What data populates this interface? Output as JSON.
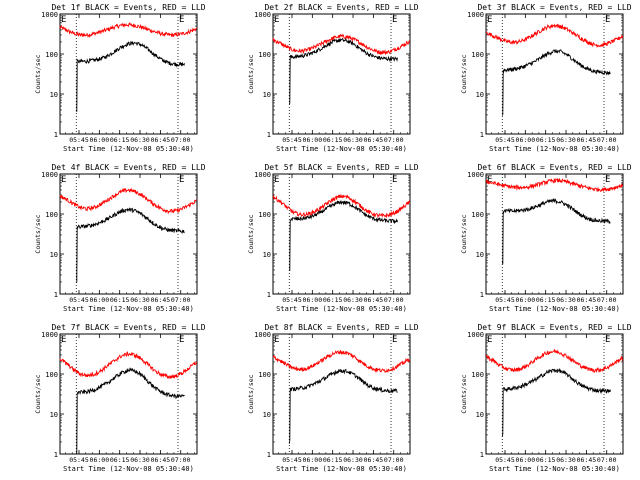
{
  "figure": {
    "panel_titles": [
      "Det 1f BLACK = Events, RED = LLD",
      "Det 2f BLACK = Events, RED = LLD",
      "Det 3f BLACK = Events, RED = LLD",
      "Det 4f BLACK = Events, RED = LLD",
      "Det 5f BLACK = Events, RED = LLD",
      "Det 6f BLACK = Events, RED = LLD",
      "Det 7f BLACK = Events, RED = LLD",
      "Det 8f BLACK = Events, RED = LLD",
      "Det 9f BLACK = Events, RED = LLD"
    ],
    "colors": {
      "events": "#000000",
      "lld": "#ff0000",
      "axes": "#000000",
      "background": "#ffffff"
    }
  },
  "chart_data": [
    {
      "type": "line",
      "title": "Det 1f BLACK = Events, RED = LLD",
      "xlabel": "Start Time (12-Nov-08 05:30:40)",
      "ylabel": "Counts/sec",
      "yscale": "log",
      "ylim": [
        1,
        1000
      ],
      "xlim": [
        "05:31",
        "07:12"
      ],
      "xticks": [
        "05:45",
        "06:00",
        "06:15",
        "06:30",
        "06:45",
        "07:00"
      ],
      "yticks": [
        "1",
        "10",
        "100",
        "1000"
      ],
      "markers": [
        {
          "label": "E",
          "x": "05:31"
        },
        {
          "label": "E",
          "x": "06:58"
        }
      ],
      "dotted_vlines": [
        "05:43",
        "06:58"
      ],
      "x": [
        "05:31",
        "05:36",
        "05:41",
        "05:46",
        "05:51",
        "05:56",
        "06:01",
        "06:06",
        "06:11",
        "06:16",
        "06:21",
        "06:26",
        "06:31",
        "06:36",
        "06:41",
        "06:46",
        "06:51",
        "06:56",
        "07:01",
        "07:06",
        "07:11"
      ],
      "series": [
        {
          "name": "LLD",
          "color": "#ff0000",
          "values": [
            470,
            390,
            330,
            300,
            300,
            320,
            360,
            410,
            470,
            520,
            540,
            520,
            470,
            410,
            360,
            320,
            300,
            300,
            320,
            360,
            420
          ]
        },
        {
          "name": "Events",
          "color": "#000000",
          "x_start": "05:43",
          "x_end": "07:03",
          "values": [
            null,
            null,
            4,
            65,
            66,
            70,
            76,
            90,
            115,
            150,
            180,
            190,
            170,
            130,
            95,
            72,
            60,
            56,
            55,
            null,
            null
          ]
        }
      ]
    },
    {
      "type": "line",
      "title": "Det 2f BLACK = Events, RED = LLD",
      "xlabel": "Start Time (12-Nov-08 05:30:40)",
      "ylabel": "Counts/sec",
      "yscale": "log",
      "ylim": [
        1,
        1000
      ],
      "xlim": [
        "05:31",
        "07:12"
      ],
      "xticks": [
        "05:45",
        "06:00",
        "06:15",
        "06:30",
        "06:45",
        "07:00"
      ],
      "yticks": [
        "1",
        "10",
        "100",
        "1000"
      ],
      "markers": [
        {
          "label": "E",
          "x": "05:31"
        },
        {
          "label": "E",
          "x": "06:58"
        }
      ],
      "dotted_vlines": [
        "05:43",
        "06:58"
      ],
      "x": [
        "05:31",
        "05:36",
        "05:41",
        "05:46",
        "05:51",
        "05:56",
        "06:01",
        "06:06",
        "06:11",
        "06:16",
        "06:21",
        "06:26",
        "06:31",
        "06:36",
        "06:41",
        "06:46",
        "06:51",
        "06:56",
        "07:01",
        "07:06",
        "07:11"
      ],
      "series": [
        {
          "name": "LLD",
          "color": "#ff0000",
          "values": [
            230,
            190,
            150,
            125,
            118,
            125,
            145,
            175,
            215,
            255,
            280,
            265,
            230,
            185,
            145,
            120,
            110,
            112,
            130,
            160,
            200
          ]
        },
        {
          "name": "Events",
          "color": "#000000",
          "x_start": "05:43",
          "x_end": "07:03",
          "values": [
            null,
            null,
            6,
            85,
            88,
            95,
            110,
            135,
            170,
            205,
            225,
            210,
            175,
            130,
            100,
            85,
            78,
            76,
            75,
            null,
            null
          ]
        }
      ]
    },
    {
      "type": "line",
      "title": "Det 3f BLACK = Events, RED = LLD",
      "xlabel": "Start Time (12-Nov-08 05:30:40)",
      "ylabel": "Counts/sec",
      "yscale": "log",
      "ylim": [
        1,
        1000
      ],
      "xlim": [
        "05:31",
        "07:12"
      ],
      "xticks": [
        "05:45",
        "06:00",
        "06:15",
        "06:30",
        "06:45",
        "07:00"
      ],
      "yticks": [
        "1",
        "10",
        "100",
        "1000"
      ],
      "markers": [
        {
          "label": "E",
          "x": "05:31"
        },
        {
          "label": "E",
          "x": "06:58"
        }
      ],
      "dotted_vlines": [
        "05:43",
        "06:58"
      ],
      "x": [
        "05:31",
        "05:36",
        "05:41",
        "05:46",
        "05:51",
        "05:56",
        "06:01",
        "06:06",
        "06:11",
        "06:16",
        "06:21",
        "06:26",
        "06:31",
        "06:36",
        "06:41",
        "06:46",
        "06:51",
        "06:56",
        "07:01",
        "07:06",
        "07:11"
      ],
      "series": [
        {
          "name": "LLD",
          "color": "#ff0000",
          "values": [
            350,
            290,
            240,
            205,
            195,
            205,
            240,
            300,
            380,
            470,
            520,
            490,
            410,
            320,
            250,
            200,
            170,
            165,
            185,
            220,
            270
          ]
        },
        {
          "name": "Events",
          "color": "#000000",
          "x_start": "05:43",
          "x_end": "07:03",
          "values": [
            null,
            null,
            3,
            40,
            42,
            45,
            52,
            62,
            78,
            100,
            118,
            115,
            95,
            70,
            52,
            42,
            37,
            35,
            34,
            null,
            null
          ]
        }
      ]
    },
    {
      "type": "line",
      "title": "Det 4f BLACK = Events, RED = LLD",
      "xlabel": "Start Time (12-Nov-08 05:30:40)",
      "ylabel": "Counts/sec",
      "yscale": "log",
      "ylim": [
        1,
        1000
      ],
      "xlim": [
        "05:31",
        "07:12"
      ],
      "xticks": [
        "05:45",
        "06:00",
        "06:15",
        "06:30",
        "06:45",
        "07:00"
      ],
      "yticks": [
        "1",
        "10",
        "100",
        "1000"
      ],
      "markers": [
        {
          "label": "E",
          "x": "05:31"
        },
        {
          "label": "E",
          "x": "06:58"
        }
      ],
      "dotted_vlines": [
        "05:43",
        "06:58"
      ],
      "x": [
        "05:31",
        "05:36",
        "05:41",
        "05:46",
        "05:51",
        "05:56",
        "06:01",
        "06:06",
        "06:11",
        "06:16",
        "06:21",
        "06:26",
        "06:31",
        "06:36",
        "06:41",
        "06:46",
        "06:51",
        "06:56",
        "07:01",
        "07:06",
        "07:11"
      ],
      "series": [
        {
          "name": "LLD",
          "color": "#ff0000",
          "values": [
            280,
            230,
            180,
            145,
            135,
            145,
            175,
            225,
            290,
            360,
            400,
            370,
            300,
            225,
            170,
            135,
            118,
            118,
            135,
            165,
            210
          ]
        },
        {
          "name": "Events",
          "color": "#000000",
          "x_start": "05:43",
          "x_end": "07:03",
          "values": [
            null,
            null,
            2,
            48,
            50,
            54,
            62,
            75,
            95,
            118,
            130,
            122,
            100,
            75,
            55,
            44,
            40,
            38,
            37,
            null,
            null
          ]
        }
      ]
    },
    {
      "type": "line",
      "title": "Det 5f BLACK = Events, RED = LLD",
      "xlabel": "Start Time (12-Nov-08 05:30:40)",
      "ylabel": "Counts/sec",
      "yscale": "log",
      "ylim": [
        1,
        1000
      ],
      "xlim": [
        "05:31",
        "07:12"
      ],
      "xticks": [
        "05:45",
        "06:00",
        "06:15",
        "06:30",
        "06:45",
        "07:00"
      ],
      "yticks": [
        "1",
        "10",
        "100",
        "1000"
      ],
      "markers": [
        {
          "label": "E",
          "x": "05:31"
        },
        {
          "label": "E",
          "x": "06:58"
        }
      ],
      "dotted_vlines": [
        "05:43",
        "06:58"
      ],
      "x": [
        "05:31",
        "05:36",
        "05:41",
        "05:46",
        "05:51",
        "05:56",
        "06:01",
        "06:06",
        "06:11",
        "06:16",
        "06:21",
        "06:26",
        "06:31",
        "06:36",
        "06:41",
        "06:46",
        "06:51",
        "06:56",
        "07:01",
        "07:06",
        "07:11"
      ],
      "series": [
        {
          "name": "LLD",
          "color": "#ff0000",
          "values": [
            270,
            210,
            150,
            110,
            96,
            98,
            112,
            140,
            185,
            240,
            280,
            265,
            210,
            155,
            115,
            96,
            90,
            92,
            108,
            140,
            190
          ]
        },
        {
          "name": "Events",
          "color": "#000000",
          "x_start": "05:43",
          "x_end": "07:03",
          "values": [
            null,
            null,
            4,
            75,
            76,
            80,
            90,
            110,
            140,
            175,
            200,
            190,
            155,
            115,
            88,
            75,
            70,
            67,
            66,
            null,
            null
          ]
        }
      ]
    },
    {
      "type": "line",
      "title": "Det 6f BLACK = Events, RED = LLD",
      "xlabel": "Start Time (12-Nov-08 05:30:40)",
      "ylabel": "Counts/sec",
      "yscale": "log",
      "ylim": [
        1,
        1000
      ],
      "xlim": [
        "05:31",
        "07:12"
      ],
      "xticks": [
        "05:45",
        "06:00",
        "06:15",
        "06:30",
        "06:45",
        "07:00"
      ],
      "yticks": [
        "1",
        "10",
        "100",
        "1000"
      ],
      "markers": [
        {
          "label": "E",
          "x": "05:31"
        },
        {
          "label": "E",
          "x": "06:58"
        }
      ],
      "dotted_vlines": [
        "05:43",
        "06:58"
      ],
      "x": [
        "05:31",
        "05:36",
        "05:41",
        "05:46",
        "05:51",
        "05:56",
        "06:01",
        "06:06",
        "06:11",
        "06:16",
        "06:21",
        "06:26",
        "06:31",
        "06:36",
        "06:41",
        "06:46",
        "06:51",
        "06:56",
        "07:01",
        "07:06",
        "07:11"
      ],
      "series": [
        {
          "name": "LLD",
          "color": "#ff0000",
          "values": [
            650,
            600,
            540,
            500,
            470,
            460,
            470,
            510,
            570,
            640,
            690,
            680,
            630,
            560,
            500,
            450,
            420,
            410,
            420,
            460,
            520
          ]
        },
        {
          "name": "Events",
          "color": "#000000",
          "x_start": "05:43",
          "x_end": "07:03",
          "values": [
            null,
            null,
            6,
            120,
            118,
            122,
            130,
            145,
            170,
            200,
            215,
            200,
            165,
            125,
            95,
            78,
            70,
            67,
            66,
            null,
            null
          ]
        }
      ]
    },
    {
      "type": "line",
      "title": "Det 7f BLACK = Events, RED = LLD",
      "xlabel": "Start Time (12-Nov-08 05:30:40)",
      "ylabel": "Counts/sec",
      "yscale": "log",
      "ylim": [
        1,
        1000
      ],
      "xlim": [
        "05:31",
        "07:12"
      ],
      "xticks": [
        "05:45",
        "06:00",
        "06:15",
        "06:30",
        "06:45",
        "07:00"
      ],
      "yticks": [
        "1",
        "10",
        "100",
        "1000"
      ],
      "markers": [
        {
          "label": "E",
          "x": "05:31"
        },
        {
          "label": "E",
          "x": "06:58"
        }
      ],
      "dotted_vlines": [
        "05:43",
        "06:58"
      ],
      "x": [
        "05:31",
        "05:36",
        "05:41",
        "05:46",
        "05:51",
        "05:56",
        "06:01",
        "06:06",
        "06:11",
        "06:16",
        "06:21",
        "06:26",
        "06:31",
        "06:36",
        "06:41",
        "06:46",
        "06:51",
        "06:56",
        "07:01",
        "07:06",
        "07:11"
      ],
      "series": [
        {
          "name": "LLD",
          "color": "#ff0000",
          "values": [
            240,
            180,
            130,
            100,
            92,
            98,
            120,
            160,
            215,
            280,
            320,
            300,
            240,
            170,
            120,
            95,
            85,
            88,
            105,
            140,
            190
          ]
        },
        {
          "name": "Events",
          "color": "#000000",
          "x_start": "05:43",
          "x_end": "07:03",
          "values": [
            null,
            null,
            1,
            35,
            36,
            40,
            48,
            60,
            80,
            105,
            125,
            120,
            95,
            65,
            45,
            35,
            30,
            28,
            28,
            null,
            null
          ]
        }
      ]
    },
    {
      "type": "line",
      "title": "Det 8f BLACK = Events, RED = LLD",
      "xlabel": "Start Time (12-Nov-08 05:30:40)",
      "ylabel": "Counts/sec",
      "yscale": "log",
      "ylim": [
        1,
        1000
      ],
      "xlim": [
        "05:31",
        "07:12"
      ],
      "xticks": [
        "05:45",
        "06:00",
        "06:15",
        "06:30",
        "06:45",
        "07:00"
      ],
      "yticks": [
        "1",
        "10",
        "100",
        "1000"
      ],
      "markers": [
        {
          "label": "E",
          "x": "05:31"
        },
        {
          "label": "E",
          "x": "06:58"
        }
      ],
      "dotted_vlines": [
        "05:43",
        "06:58"
      ],
      "x": [
        "05:31",
        "05:36",
        "05:41",
        "05:46",
        "05:51",
        "05:56",
        "06:01",
        "06:06",
        "06:11",
        "06:16",
        "06:21",
        "06:26",
        "06:31",
        "06:36",
        "06:41",
        "06:46",
        "06:51",
        "06:56",
        "07:01",
        "07:06",
        "07:11"
      ],
      "series": [
        {
          "name": "LLD",
          "color": "#ff0000",
          "values": [
            270,
            220,
            170,
            140,
            130,
            138,
            165,
            210,
            270,
            330,
            360,
            330,
            270,
            200,
            155,
            130,
            122,
            125,
            145,
            180,
            230
          ]
        },
        {
          "name": "Events",
          "color": "#000000",
          "x_start": "05:43",
          "x_end": "07:03",
          "values": [
            null,
            null,
            2,
            42,
            44,
            48,
            56,
            68,
            85,
            108,
            122,
            116,
            95,
            70,
            52,
            44,
            40,
            38,
            38,
            null,
            null
          ]
        }
      ]
    },
    {
      "type": "line",
      "title": "Det 9f BLACK = Events, RED = LLD",
      "xlabel": "Start Time (12-Nov-08 05:30:40)",
      "ylabel": "Counts/sec",
      "yscale": "log",
      "ylim": [
        1,
        1000
      ],
      "xlim": [
        "05:31",
        "07:12"
      ],
      "xticks": [
        "05:45",
        "06:00",
        "06:15",
        "06:30",
        "06:45",
        "07:00"
      ],
      "yticks": [
        "1",
        "10",
        "100",
        "1000"
      ],
      "markers": [
        {
          "label": "E",
          "x": "05:31"
        },
        {
          "label": "E",
          "x": "06:58"
        }
      ],
      "dotted_vlines": [
        "05:43",
        "06:58"
      ],
      "x": [
        "05:31",
        "05:36",
        "05:41",
        "05:46",
        "05:51",
        "05:56",
        "06:01",
        "06:06",
        "06:11",
        "06:16",
        "06:21",
        "06:26",
        "06:31",
        "06:36",
        "06:41",
        "06:46",
        "06:51",
        "06:56",
        "07:01",
        "07:06",
        "07:11"
      ],
      "series": [
        {
          "name": "LLD",
          "color": "#ff0000",
          "values": [
            280,
            220,
            165,
            135,
            125,
            132,
            160,
            210,
            275,
            340,
            370,
            340,
            275,
            205,
            160,
            135,
            125,
            128,
            150,
            190,
            250
          ]
        },
        {
          "name": "Events",
          "color": "#000000",
          "x_start": "05:43",
          "x_end": "07:03",
          "values": [
            null,
            null,
            3,
            42,
            44,
            48,
            56,
            68,
            86,
            110,
            125,
            118,
            96,
            70,
            52,
            44,
            40,
            38,
            38,
            null,
            null
          ]
        }
      ]
    }
  ]
}
